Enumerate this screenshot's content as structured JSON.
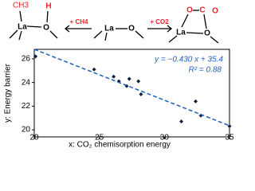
{
  "scheme": {
    "labels": [
      "CH3",
      "H",
      "La",
      "O",
      "+ CH4",
      "La",
      "O",
      "+ CO2",
      "O",
      "C",
      "O",
      "La",
      "O"
    ]
  },
  "chart_data": {
    "type": "scatter",
    "x_label": "x: CO₂ chemisorption energy",
    "y_label": "y: Energy barrier",
    "x": [
      20.1,
      24.6,
      26.1,
      26.5,
      27.3,
      28.0,
      28.2,
      27.1,
      31.3,
      32.4,
      32.8,
      35.0
    ],
    "values": [
      26.2,
      25.1,
      24.5,
      24.1,
      24.3,
      24.1,
      23.0,
      23.7,
      20.7,
      22.4,
      21.2,
      20.3
    ],
    "color": "#0d1f3f",
    "xlim": [
      20,
      35
    ],
    "xticks": [
      20,
      25,
      30,
      35
    ],
    "ylim": [
      19.4,
      26.8
    ],
    "yticks": [
      20,
      22,
      24,
      26
    ],
    "trendline": {
      "slope": -0.43,
      "intercept": 35.4,
      "color": "#1f5fbf",
      "equation": "y = −0.430 x + 35.4",
      "r2_label": "R² = 0.88"
    }
  }
}
